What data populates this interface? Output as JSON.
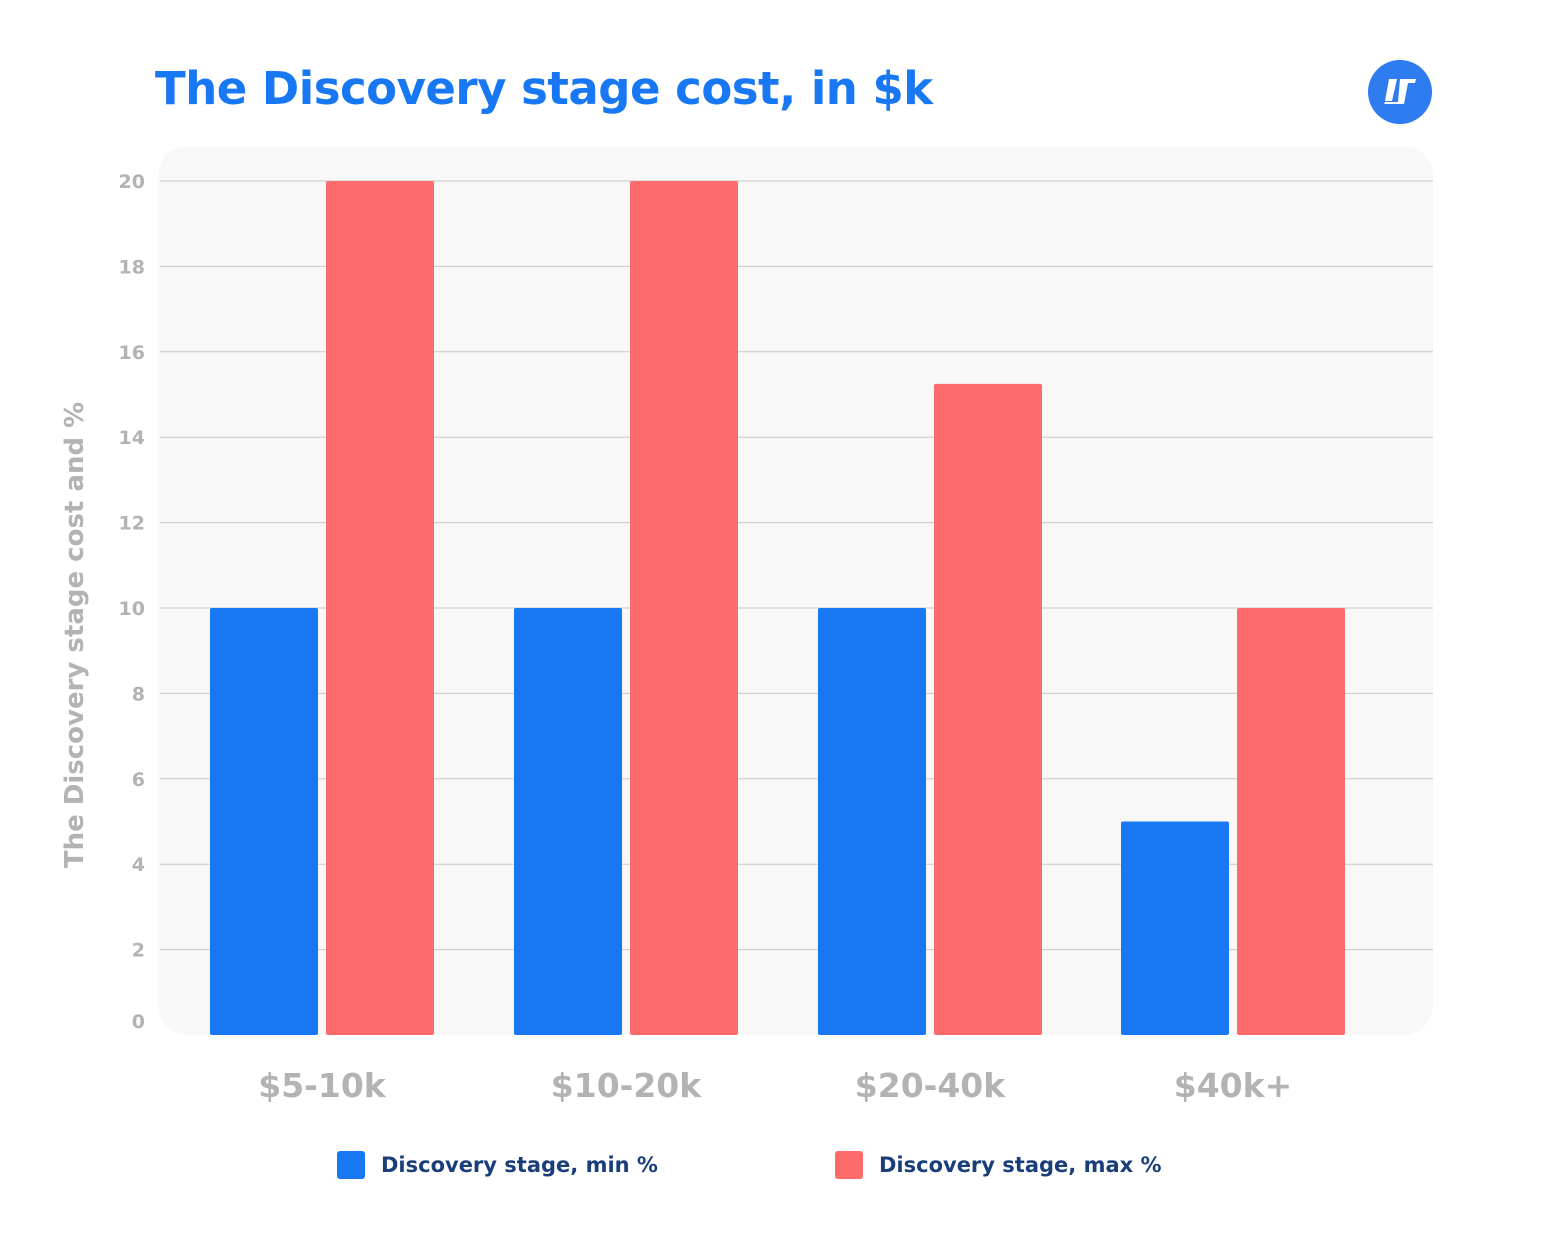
{
  "chart_data": {
    "type": "bar",
    "title": "The Discovery stage cost, in $k",
    "ylabel": "The Discovery stage cost and %",
    "xlabel": "",
    "categories": [
      "$5-10k",
      "$10-20k",
      "$20-40k",
      "$40k+"
    ],
    "series": [
      {
        "name": "Discovery stage, min %",
        "color": "#1877f2",
        "values": [
          10,
          10,
          10,
          5
        ]
      },
      {
        "name": "Discovery stage, max %",
        "color": "#ff6b6b",
        "values": [
          20,
          20,
          15.25,
          10
        ]
      }
    ],
    "ylim": [
      0,
      20
    ],
    "yticks": [
      "0",
      "2",
      "4",
      "6",
      "8",
      "10",
      "12",
      "14",
      "16",
      "18",
      "20"
    ],
    "grid": true,
    "legend": "bottom"
  },
  "logo": {
    "icon": "brand-logo-icon",
    "color": "#2f7bf0"
  }
}
